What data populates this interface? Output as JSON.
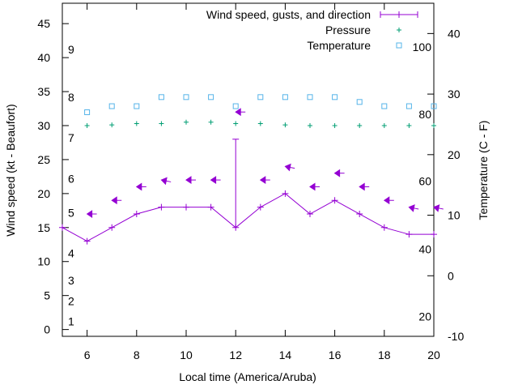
{
  "chart_data": {
    "type": "line",
    "xlabel": "Local time (America/Aruba)",
    "ylabel": "Wind speed (kt - Beaufort)",
    "y2label": "Temperature (C - F)",
    "xlim": [
      5,
      20
    ],
    "ylim": [
      -1,
      48
    ],
    "y2lim": [
      -10,
      45
    ],
    "x_ticks": [
      6,
      8,
      10,
      12,
      14,
      16,
      18,
      20
    ],
    "y_ticks": [
      0,
      5,
      10,
      15,
      20,
      25,
      30,
      35,
      40,
      45
    ],
    "y2_ticks": [
      -10,
      0,
      10,
      20,
      30,
      40
    ],
    "legend_position": "top-right",
    "legend": [
      "Wind speed, gusts, and direction",
      "Pressure",
      "Temperature"
    ],
    "colors": {
      "wind": "#9400d3",
      "pressure": "#009e73",
      "temperature": "#56b4e9"
    },
    "beaufort_labels": [
      {
        "label": "1",
        "wind_kt": 1.2
      },
      {
        "label": "2",
        "wind_kt": 4.2
      },
      {
        "label": "3",
        "wind_kt": 7.2
      },
      {
        "label": "4",
        "wind_kt": 11.2
      },
      {
        "label": "5",
        "wind_kt": 17.2
      },
      {
        "label": "6",
        "wind_kt": 22.2
      },
      {
        "label": "7",
        "wind_kt": 28.2
      },
      {
        "label": "8",
        "wind_kt": 34.2
      },
      {
        "label": "9",
        "wind_kt": 41.2
      }
    ],
    "fahrenheit_labels": [
      {
        "label": "20",
        "temp_c": -6.7
      },
      {
        "label": "40",
        "temp_c": 4.4
      },
      {
        "label": "60",
        "temp_c": 15.6
      },
      {
        "label": "80",
        "temp_c": 26.7
      },
      {
        "label": "100",
        "temp_c": 37.8
      }
    ],
    "wind_speed": {
      "x": [
        5,
        6,
        7,
        8,
        9,
        10,
        11,
        12,
        13,
        14,
        15,
        16,
        17,
        18,
        19,
        20
      ],
      "y": [
        15,
        13,
        15,
        17,
        18,
        18,
        18,
        15,
        18,
        20,
        17,
        19,
        17,
        15,
        14,
        14
      ]
    },
    "gust": {
      "x": 12,
      "from": 15,
      "to": 28
    },
    "wind_direction_arrows": {
      "x": [
        6,
        7,
        8,
        9,
        10,
        11,
        12,
        13,
        14,
        15,
        16,
        17,
        18,
        19,
        20
      ],
      "y": [
        17,
        19,
        21,
        22,
        22,
        22,
        32,
        22,
        24,
        21,
        23,
        21,
        19,
        18,
        18
      ],
      "dx": [
        -1,
        -1,
        -1,
        -1,
        -1,
        -1,
        -1,
        -1,
        -1,
        -1,
        -1,
        -1,
        -1,
        -1,
        -1
      ],
      "dy": [
        0,
        0,
        0,
        0.2,
        0,
        0,
        0,
        0,
        0.2,
        0,
        0,
        0,
        0,
        0.2,
        0.2
      ]
    },
    "pressure": {
      "x": [
        6,
        7,
        8,
        9,
        10,
        11,
        12,
        13,
        14,
        15,
        16,
        17,
        18,
        19,
        20
      ],
      "y": [
        30,
        30.1,
        30.3,
        30.3,
        30.5,
        30.5,
        30.3,
        30.3,
        30.1,
        30,
        30,
        30,
        30,
        30,
        30
      ]
    },
    "temperature": {
      "x": [
        6,
        7,
        8,
        9,
        10,
        11,
        12,
        13,
        14,
        15,
        16,
        17,
        18,
        19,
        20
      ],
      "y": [
        27,
        28,
        28,
        29.5,
        29.5,
        29.5,
        28,
        29.5,
        29.5,
        29.5,
        29.5,
        28.7,
        28,
        28,
        28
      ]
    }
  }
}
